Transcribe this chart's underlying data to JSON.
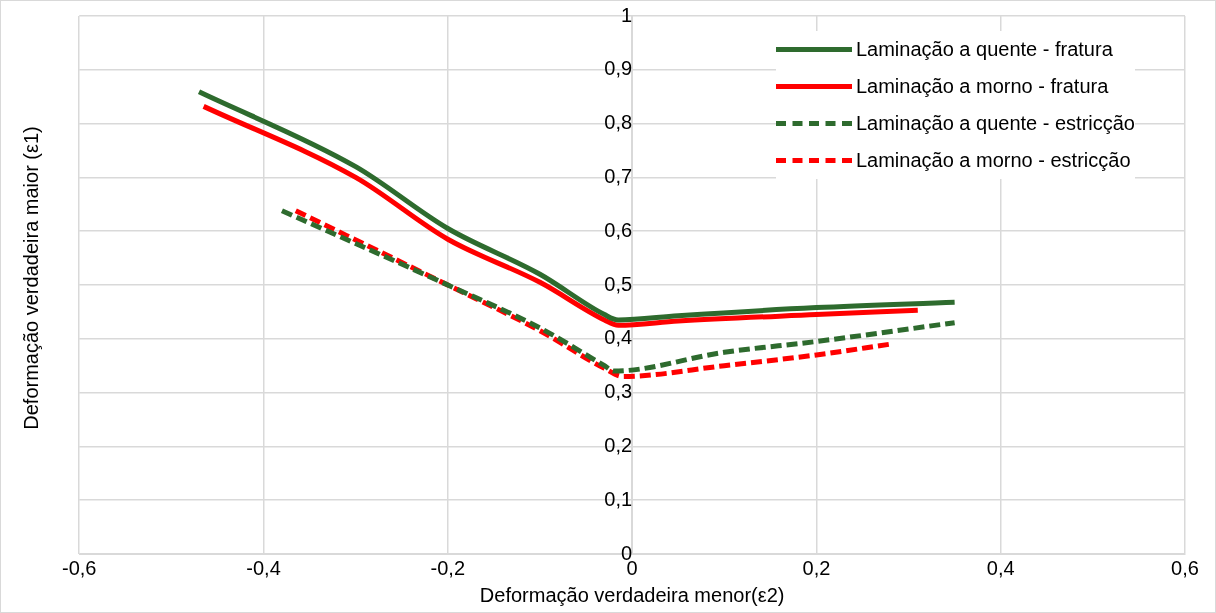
{
  "chart_data": {
    "type": "line",
    "xlabel": "Deformação verdadeira menor(ε2)",
    "ylabel": "Deformação verdadeira maior (ε1)",
    "xlim": [
      -0.6,
      0.6
    ],
    "xticks": [
      {
        "value": -0.6,
        "label": "-0,6"
      },
      {
        "value": -0.4,
        "label": "-0,4"
      },
      {
        "value": -0.2,
        "label": "-0,2"
      },
      {
        "value": 0,
        "label": "0"
      },
      {
        "value": 0.2,
        "label": "0,2"
      },
      {
        "value": 0.4,
        "label": "0,4"
      },
      {
        "value": 0.6,
        "label": "0,6"
      }
    ],
    "ylim": [
      0,
      1
    ],
    "yticks": [
      0,
      {
        "value": 0.1,
        "label": "0,1"
      },
      {
        "value": 0.2,
        "label": "0,2"
      },
      {
        "value": 0.3,
        "label": "0,3"
      },
      {
        "value": 0.4,
        "label": "0,4"
      },
      {
        "value": 0.5,
        "label": "0,5"
      },
      {
        "value": 0.6,
        "label": "0,6"
      },
      {
        "value": 0.7,
        "label": "0,7"
      },
      {
        "value": 0.8,
        "label": "0,8"
      },
      {
        "value": 0.9,
        "label": "0,9"
      },
      1
    ],
    "grid": true,
    "legend": "top right",
    "marker": "none",
    "series": [
      {
        "name": "Laminação a quente - fratura",
        "color": "#2e6b2e",
        "line_style": "solid",
        "x": [
          -0.47,
          -0.3,
          -0.2,
          -0.1,
          -0.03,
          -0.015,
          0.05,
          0.2,
          0.35
        ],
        "values": [
          0.859,
          0.72,
          0.605,
          0.52,
          0.445,
          0.435,
          0.443,
          0.458,
          0.468
        ]
      },
      {
        "name": "Laminação a morno - fratura",
        "color": "#ff0000",
        "line_style": "solid",
        "x": [
          -0.465,
          -0.3,
          -0.2,
          -0.1,
          -0.03,
          -0.015,
          0.05,
          0.2,
          0.31
        ],
        "values": [
          0.832,
          0.7,
          0.585,
          0.505,
          0.435,
          0.425,
          0.433,
          0.445,
          0.453
        ]
      },
      {
        "name": "Laminação a quente - estricção",
        "color": "#2e6b2e",
        "line_style": "dashed",
        "x": [
          -0.38,
          -0.2,
          -0.1,
          -0.03,
          -0.02,
          0.1,
          0.2,
          0.35
        ],
        "values": [
          0.638,
          0.5,
          0.42,
          0.35,
          0.34,
          0.375,
          0.395,
          0.43
        ]
      },
      {
        "name": "Laminação a morno - estricção",
        "color": "#ff0000",
        "line_style": "dashed",
        "x": [
          -0.365,
          -0.2,
          -0.1,
          -0.03,
          -0.01,
          0.1,
          0.2,
          0.28
        ],
        "values": [
          0.638,
          0.5,
          0.415,
          0.345,
          0.33,
          0.35,
          0.37,
          0.39
        ]
      }
    ]
  }
}
